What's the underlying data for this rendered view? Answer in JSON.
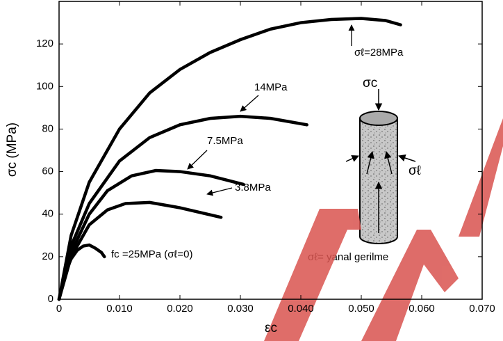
{
  "chart_data": {
    "type": "line",
    "x_label": "εc",
    "y_label": "σc (MPa)",
    "xlim": [
      0,
      0.07
    ],
    "ylim": [
      0,
      140
    ],
    "xticks": [
      0,
      {
        "value": 0.01,
        "label": "0.010"
      },
      {
        "value": 0.02,
        "label": "0.020"
      },
      {
        "value": 0.03,
        "label": "0.030"
      },
      {
        "value": 0.04,
        "label": "0.040"
      },
      {
        "value": 0.05,
        "label": "0.050"
      },
      {
        "value": 0.06,
        "label": "0.060"
      },
      {
        "value": 0.07,
        "label": "0.070"
      }
    ],
    "yticks": [
      0,
      20,
      40,
      60,
      80,
      100,
      120
    ],
    "series": [
      {
        "name": "σℓ=28MPa",
        "color": "#000000",
        "x": [
          0,
          0.002,
          0.005,
          0.01,
          0.015,
          0.02,
          0.025,
          0.03,
          0.035,
          0.04,
          0.045,
          0.05,
          0.054,
          0.0565
        ],
        "values": [
          0,
          30,
          55,
          80,
          97,
          108,
          116,
          122,
          127,
          130,
          131.5,
          132,
          131,
          129
        ]
      },
      {
        "name": "14MPa",
        "color": "#000000",
        "x": [
          0,
          0.002,
          0.005,
          0.01,
          0.015,
          0.02,
          0.025,
          0.03,
          0.035,
          0.041
        ],
        "values": [
          0,
          25,
          45,
          65,
          76,
          82,
          85,
          86,
          85,
          82
        ]
      },
      {
        "name": "7.5MPa",
        "color": "#000000",
        "x": [
          0,
          0.002,
          0.005,
          0.008,
          0.012,
          0.016,
          0.02,
          0.025,
          0.0305
        ],
        "values": [
          0,
          22,
          40,
          51,
          58,
          60.5,
          60,
          58,
          54
        ]
      },
      {
        "name": "3.8MPa",
        "color": "#000000",
        "x": [
          0,
          0.002,
          0.005,
          0.008,
          0.011,
          0.015,
          0.02,
          0.0268
        ],
        "values": [
          0,
          20,
          35,
          42,
          45,
          45.5,
          43,
          38.5
        ]
      },
      {
        "name": "fc =25MPa (σℓ=0)",
        "color": "#000000",
        "x": [
          0,
          0.001,
          0.002,
          0.003,
          0.004,
          0.005,
          0.006,
          0.007,
          0.0075
        ],
        "values": [
          0,
          12,
          19,
          23,
          25,
          25.5,
          24,
          22,
          20
        ]
      }
    ]
  },
  "diagram": {
    "axial_label": "σc",
    "lateral_label": "σℓ",
    "caption": "σℓ= yanal gerilme"
  }
}
